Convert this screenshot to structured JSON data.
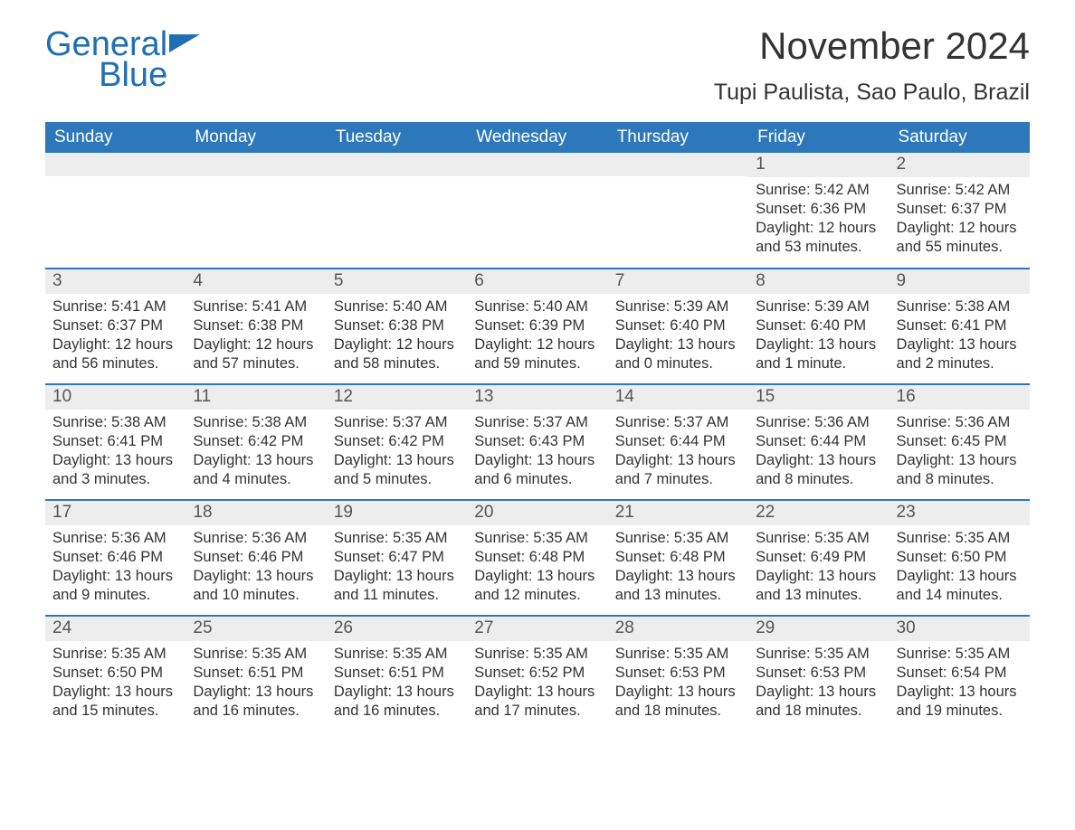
{
  "brand": {
    "word1": "General",
    "word2": "Blue",
    "color": "#1f6fb2"
  },
  "title": "November 2024",
  "location": "Tupi Paulista, Sao Paulo, Brazil",
  "colors": {
    "header_bg": "#2d77bb",
    "header_fg": "#ffffff",
    "daynum_bg": "#ededed",
    "daynum_fg": "#555555",
    "text": "#333333",
    "page_bg": "#ffffff",
    "row_sep": "#2d77bb"
  },
  "typography": {
    "title_fontsize": 42,
    "location_fontsize": 25,
    "weekday_fontsize": 19,
    "daynum_fontsize": 19,
    "body_fontsize": 16.5,
    "font_family": "Arial"
  },
  "weekdays": [
    "Sunday",
    "Monday",
    "Tuesday",
    "Wednesday",
    "Thursday",
    "Friday",
    "Saturday"
  ],
  "weeks": [
    [
      null,
      null,
      null,
      null,
      null,
      {
        "n": "1",
        "sunrise": "5:42 AM",
        "sunset": "6:36 PM",
        "daylight": "12 hours and 53 minutes."
      },
      {
        "n": "2",
        "sunrise": "5:42 AM",
        "sunset": "6:37 PM",
        "daylight": "12 hours and 55 minutes."
      }
    ],
    [
      {
        "n": "3",
        "sunrise": "5:41 AM",
        "sunset": "6:37 PM",
        "daylight": "12 hours and 56 minutes."
      },
      {
        "n": "4",
        "sunrise": "5:41 AM",
        "sunset": "6:38 PM",
        "daylight": "12 hours and 57 minutes."
      },
      {
        "n": "5",
        "sunrise": "5:40 AM",
        "sunset": "6:38 PM",
        "daylight": "12 hours and 58 minutes."
      },
      {
        "n": "6",
        "sunrise": "5:40 AM",
        "sunset": "6:39 PM",
        "daylight": "12 hours and 59 minutes."
      },
      {
        "n": "7",
        "sunrise": "5:39 AM",
        "sunset": "6:40 PM",
        "daylight": "13 hours and 0 minutes."
      },
      {
        "n": "8",
        "sunrise": "5:39 AM",
        "sunset": "6:40 PM",
        "daylight": "13 hours and 1 minute."
      },
      {
        "n": "9",
        "sunrise": "5:38 AM",
        "sunset": "6:41 PM",
        "daylight": "13 hours and 2 minutes."
      }
    ],
    [
      {
        "n": "10",
        "sunrise": "5:38 AM",
        "sunset": "6:41 PM",
        "daylight": "13 hours and 3 minutes."
      },
      {
        "n": "11",
        "sunrise": "5:38 AM",
        "sunset": "6:42 PM",
        "daylight": "13 hours and 4 minutes."
      },
      {
        "n": "12",
        "sunrise": "5:37 AM",
        "sunset": "6:42 PM",
        "daylight": "13 hours and 5 minutes."
      },
      {
        "n": "13",
        "sunrise": "5:37 AM",
        "sunset": "6:43 PM",
        "daylight": "13 hours and 6 minutes."
      },
      {
        "n": "14",
        "sunrise": "5:37 AM",
        "sunset": "6:44 PM",
        "daylight": "13 hours and 7 minutes."
      },
      {
        "n": "15",
        "sunrise": "5:36 AM",
        "sunset": "6:44 PM",
        "daylight": "13 hours and 8 minutes."
      },
      {
        "n": "16",
        "sunrise": "5:36 AM",
        "sunset": "6:45 PM",
        "daylight": "13 hours and 8 minutes."
      }
    ],
    [
      {
        "n": "17",
        "sunrise": "5:36 AM",
        "sunset": "6:46 PM",
        "daylight": "13 hours and 9 minutes."
      },
      {
        "n": "18",
        "sunrise": "5:36 AM",
        "sunset": "6:46 PM",
        "daylight": "13 hours and 10 minutes."
      },
      {
        "n": "19",
        "sunrise": "5:35 AM",
        "sunset": "6:47 PM",
        "daylight": "13 hours and 11 minutes."
      },
      {
        "n": "20",
        "sunrise": "5:35 AM",
        "sunset": "6:48 PM",
        "daylight": "13 hours and 12 minutes."
      },
      {
        "n": "21",
        "sunrise": "5:35 AM",
        "sunset": "6:48 PM",
        "daylight": "13 hours and 13 minutes."
      },
      {
        "n": "22",
        "sunrise": "5:35 AM",
        "sunset": "6:49 PM",
        "daylight": "13 hours and 13 minutes."
      },
      {
        "n": "23",
        "sunrise": "5:35 AM",
        "sunset": "6:50 PM",
        "daylight": "13 hours and 14 minutes."
      }
    ],
    [
      {
        "n": "24",
        "sunrise": "5:35 AM",
        "sunset": "6:50 PM",
        "daylight": "13 hours and 15 minutes."
      },
      {
        "n": "25",
        "sunrise": "5:35 AM",
        "sunset": "6:51 PM",
        "daylight": "13 hours and 16 minutes."
      },
      {
        "n": "26",
        "sunrise": "5:35 AM",
        "sunset": "6:51 PM",
        "daylight": "13 hours and 16 minutes."
      },
      {
        "n": "27",
        "sunrise": "5:35 AM",
        "sunset": "6:52 PM",
        "daylight": "13 hours and 17 minutes."
      },
      {
        "n": "28",
        "sunrise": "5:35 AM",
        "sunset": "6:53 PM",
        "daylight": "13 hours and 18 minutes."
      },
      {
        "n": "29",
        "sunrise": "5:35 AM",
        "sunset": "6:53 PM",
        "daylight": "13 hours and 18 minutes."
      },
      {
        "n": "30",
        "sunrise": "5:35 AM",
        "sunset": "6:54 PM",
        "daylight": "13 hours and 19 minutes."
      }
    ]
  ],
  "labels": {
    "sunrise": "Sunrise:",
    "sunset": "Sunset:",
    "daylight": "Daylight:"
  }
}
